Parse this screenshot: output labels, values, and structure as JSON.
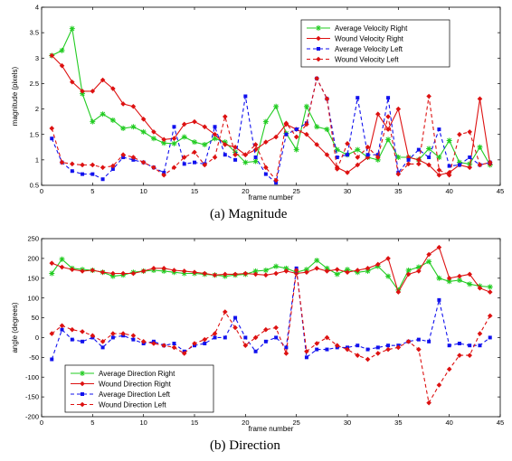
{
  "colors": {
    "green": "#22cc22",
    "red": "#dd1111",
    "blue": "#1111ee",
    "axis": "#000000"
  },
  "chart_data": [
    {
      "type": "line",
      "id": "magnitude",
      "caption": "(a)  Magnitude",
      "xlabel": "frame number",
      "ylabel": "magnitude (pixels)",
      "xlim": [
        0,
        45
      ],
      "ylim": [
        0.5,
        4
      ],
      "xticks": [
        "0",
        "5",
        "10",
        "15",
        "20",
        "25",
        "30",
        "35",
        "40",
        "45"
      ],
      "yticks": [
        "0.5",
        "1",
        "1.5",
        "2",
        "2.5",
        "3",
        "3.5",
        "4"
      ],
      "legend_position": "top-right",
      "x": [
        1,
        2,
        3,
        4,
        5,
        6,
        7,
        8,
        9,
        10,
        11,
        12,
        13,
        14,
        15,
        16,
        17,
        18,
        19,
        20,
        21,
        22,
        23,
        24,
        25,
        26,
        27,
        28,
        29,
        30,
        31,
        32,
        33,
        34,
        35,
        36,
        37,
        38,
        39,
        40,
        41,
        42,
        43,
        44
      ],
      "series": [
        {
          "name": "Average Velocity Right",
          "color": "#22cc22",
          "dash": "solid",
          "marker": "star",
          "values": [
            3.05,
            3.15,
            3.58,
            2.3,
            1.75,
            1.9,
            1.78,
            1.62,
            1.65,
            1.55,
            1.42,
            1.33,
            1.32,
            1.45,
            1.35,
            1.3,
            1.42,
            1.35,
            1.15,
            0.95,
            0.97,
            1.75,
            2.05,
            1.52,
            1.2,
            2.05,
            1.65,
            1.6,
            1.2,
            1.1,
            1.2,
            1.05,
            1.0,
            1.4,
            1.05,
            1.05,
            1.0,
            1.22,
            1.05,
            1.38,
            0.95,
            0.92,
            1.25,
            0.9
          ]
        },
        {
          "name": "Wound Velocity Right",
          "color": "#dd1111",
          "dash": "solid",
          "marker": "diamond",
          "values": [
            3.05,
            2.85,
            2.53,
            2.35,
            2.35,
            2.57,
            2.4,
            2.1,
            2.05,
            1.8,
            1.55,
            1.4,
            1.42,
            1.7,
            1.75,
            1.65,
            1.5,
            1.3,
            1.25,
            1.1,
            1.2,
            1.35,
            1.45,
            1.7,
            1.6,
            1.5,
            1.3,
            1.1,
            0.85,
            0.75,
            0.9,
            1.05,
            1.9,
            1.6,
            2.0,
            1.05,
            1.0,
            0.9,
            0.7,
            0.75,
            0.9,
            0.85,
            2.2,
            0.92
          ]
        },
        {
          "name": "Average Velocity Left",
          "color": "#1111ee",
          "dash": "dashed",
          "marker": "square",
          "values": [
            1.42,
            0.95,
            0.78,
            0.72,
            0.72,
            0.62,
            0.82,
            1.05,
            1.0,
            0.95,
            0.85,
            0.75,
            1.65,
            0.92,
            0.95,
            0.92,
            1.65,
            1.1,
            1.0,
            2.25,
            1.05,
            0.72,
            0.55,
            1.5,
            1.6,
            1.72,
            2.6,
            2.2,
            1.05,
            1.1,
            2.22,
            1.1,
            1.1,
            2.22,
            0.75,
            1.0,
            1.2,
            1.05,
            1.6,
            0.88,
            0.9,
            1.05,
            0.9,
            0.95
          ]
        },
        {
          "name": "Wound Velocity Left",
          "color": "#dd1111",
          "dash": "dashed",
          "marker": "diamond",
          "values": [
            1.62,
            0.95,
            0.92,
            0.9,
            0.9,
            0.85,
            0.88,
            1.1,
            1.05,
            0.95,
            0.85,
            0.7,
            0.85,
            1.05,
            1.15,
            0.9,
            1.05,
            1.85,
            1.1,
            1.1,
            1.3,
            0.85,
            0.6,
            1.72,
            1.45,
            1.7,
            2.6,
            2.2,
            0.82,
            1.32,
            1.05,
            1.25,
            1.05,
            1.85,
            0.72,
            0.92,
            0.92,
            2.25,
            0.8,
            0.7,
            1.5,
            1.55,
            0.9,
            0.95
          ]
        }
      ]
    },
    {
      "type": "line",
      "id": "direction",
      "caption": "(b)  Direction",
      "xlabel": "frame number",
      "ylabel": "angle (degrees)",
      "xlim": [
        0,
        45
      ],
      "ylim": [
        -200,
        250
      ],
      "xticks": [
        "0",
        "5",
        "10",
        "15",
        "20",
        "25",
        "30",
        "35",
        "40",
        "45"
      ],
      "yticks": [
        "-200",
        "-150",
        "-100",
        "-50",
        "0",
        "50",
        "100",
        "150",
        "200",
        "250"
      ],
      "legend_position": "bottom-left",
      "x": [
        1,
        2,
        3,
        4,
        5,
        6,
        7,
        8,
        9,
        10,
        11,
        12,
        13,
        14,
        15,
        16,
        17,
        18,
        19,
        20,
        21,
        22,
        23,
        24,
        25,
        26,
        27,
        28,
        29,
        30,
        31,
        32,
        33,
        34,
        35,
        36,
        37,
        38,
        39,
        40,
        41,
        42,
        43,
        44
      ],
      "series": [
        {
          "name": "Average Direction Right",
          "color": "#22cc22",
          "dash": "solid",
          "marker": "star",
          "values": [
            162,
            198,
            175,
            172,
            170,
            165,
            155,
            158,
            165,
            168,
            170,
            168,
            165,
            162,
            162,
            160,
            158,
            155,
            158,
            160,
            168,
            170,
            180,
            175,
            165,
            172,
            195,
            175,
            160,
            172,
            165,
            168,
            180,
            155,
            120,
            170,
            178,
            192,
            150,
            142,
            145,
            135,
            130,
            128
          ]
        },
        {
          "name": "Wound Direction Right",
          "color": "#dd1111",
          "dash": "solid",
          "marker": "diamond",
          "values": [
            188,
            178,
            172,
            168,
            170,
            165,
            162,
            162,
            162,
            168,
            175,
            175,
            170,
            168,
            165,
            162,
            158,
            160,
            160,
            162,
            160,
            158,
            162,
            168,
            162,
            165,
            175,
            168,
            172,
            165,
            170,
            175,
            185,
            200,
            115,
            160,
            168,
            210,
            228,
            150,
            155,
            160,
            125,
            115
          ]
        },
        {
          "name": "Average Direction Left",
          "color": "#1111ee",
          "dash": "dashed",
          "marker": "square",
          "values": [
            -55,
            20,
            -5,
            -10,
            0,
            -25,
            0,
            5,
            -5,
            -15,
            -10,
            -20,
            -15,
            -35,
            -20,
            -15,
            0,
            0,
            50,
            0,
            -35,
            -10,
            0,
            -25,
            175,
            -50,
            -30,
            -30,
            -25,
            -25,
            -20,
            -30,
            -25,
            -20,
            -20,
            -10,
            -5,
            -10,
            95,
            -20,
            -15,
            -20,
            -20,
            0
          ]
        },
        {
          "name": "Wound Direction Left",
          "color": "#dd1111",
          "dash": "dashed",
          "marker": "diamond",
          "values": [
            10,
            30,
            20,
            15,
            5,
            -10,
            10,
            10,
            5,
            -10,
            -15,
            -20,
            -25,
            -40,
            -15,
            -5,
            10,
            65,
            25,
            -20,
            0,
            20,
            25,
            -40,
            170,
            -35,
            -15,
            0,
            -20,
            -30,
            -45,
            -55,
            -40,
            -30,
            -25,
            -10,
            -30,
            -165,
            -120,
            -80,
            -45,
            -45,
            10,
            55
          ]
        }
      ]
    }
  ]
}
